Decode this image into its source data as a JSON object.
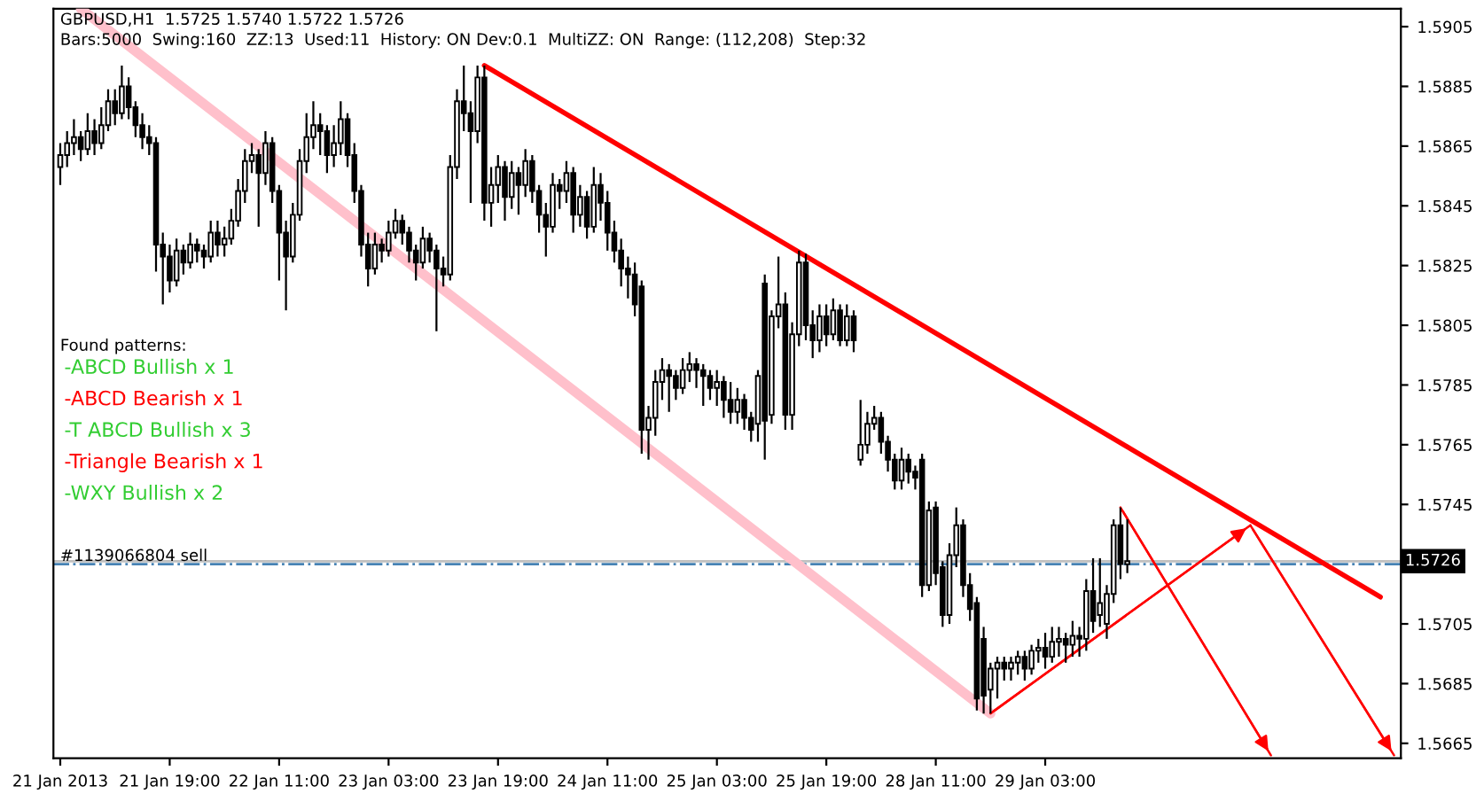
{
  "chart_data": {
    "type": "candlestick",
    "title": "GBPUSD,H1  1.5725 1.5740 1.5722 1.5726",
    "subtitle": "Bars:5000  Swing:160  ZZ:13  Used:11  History: ON Dev:0.1  MultiZZ: ON  Range: (112,208)  Step:32",
    "annotations": [
      "Found patterns:",
      "-ABCD Bullish x 1",
      "-ABCD Bearish x 1",
      "-T ABCD Bullish x 3",
      "-Triangle Bearish x 1",
      "-WXY Bullish x 2"
    ],
    "categories": [
      "21 Jan 2013",
      null,
      null,
      null,
      null,
      null,
      null,
      null,
      null,
      null,
      null,
      null,
      null,
      null,
      null,
      null,
      "21 Jan 19:00",
      null,
      null,
      null,
      null,
      null,
      null,
      null,
      null,
      null,
      null,
      null,
      null,
      null,
      null,
      null,
      "22 Jan 11:00",
      null,
      null,
      null,
      null,
      null,
      null,
      null,
      null,
      null,
      null,
      null,
      null,
      null,
      null,
      null,
      "23 Jan 03:00",
      null,
      null,
      null,
      null,
      null,
      null,
      null,
      null,
      null,
      null,
      null,
      null,
      null,
      null,
      null,
      "23 Jan 19:00",
      null,
      null,
      null,
      null,
      null,
      null,
      null,
      null,
      null,
      null,
      null,
      null,
      null,
      null,
      null,
      "24 Jan 11:00",
      null,
      null,
      null,
      null,
      null,
      null,
      null,
      null,
      null,
      null,
      null,
      null,
      null,
      null,
      null,
      "25 Jan 03:00",
      null,
      null,
      null,
      null,
      null,
      null,
      null,
      null,
      null,
      null,
      null,
      null,
      null,
      null,
      null,
      "25 Jan 19:00",
      null,
      null,
      null,
      null,
      null,
      null,
      null,
      null,
      null,
      null,
      null,
      null,
      null,
      null,
      null,
      "28 Jan 11:00",
      null,
      null,
      null,
      null,
      null,
      null,
      null,
      null,
      null,
      null,
      null,
      null,
      null,
      null,
      null,
      "29 Jan 03:00",
      null,
      null,
      null,
      null,
      null,
      null,
      null,
      null,
      null,
      null,
      null,
      null,
      null,
      null,
      null,
      null,
      null,
      null,
      null,
      null,
      null,
      null,
      null,
      null,
      null,
      null,
      null,
      null,
      null,
      null,
      null,
      null,
      null,
      null,
      null,
      null,
      null,
      null,
      null,
      null,
      null,
      null,
      null,
      null,
      null,
      null,
      null,
      null,
      null,
      null,
      null,
      null
    ],
    "ohlc": [
      [
        1.5858,
        1.5866,
        1.5852,
        1.5862
      ],
      [
        1.5862,
        1.587,
        1.5858,
        1.5866
      ],
      [
        1.5866,
        1.5874,
        1.5862,
        1.5868
      ],
      [
        1.5868,
        1.587,
        1.586,
        1.5864
      ],
      [
        1.5864,
        1.5876,
        1.5862,
        1.587
      ],
      [
        1.587,
        1.5874,
        1.5862,
        1.5866
      ],
      [
        1.5866,
        1.5878,
        1.5864,
        1.5872
      ],
      [
        1.5872,
        1.5884,
        1.587,
        1.588
      ],
      [
        1.588,
        1.5884,
        1.5872,
        1.5876
      ],
      [
        1.5876,
        1.5892,
        1.5874,
        1.5885
      ],
      [
        1.5885,
        1.5888,
        1.5874,
        1.5878
      ],
      [
        1.5878,
        1.588,
        1.5868,
        1.5872
      ],
      [
        1.5872,
        1.5876,
        1.5864,
        1.5868
      ],
      [
        1.5868,
        1.5872,
        1.5862,
        1.5866
      ],
      [
        1.5866,
        1.5868,
        1.5823,
        1.5832
      ],
      [
        1.5832,
        1.5836,
        1.5812,
        1.5828
      ],
      [
        1.5828,
        1.5832,
        1.5816,
        1.582
      ],
      [
        1.582,
        1.5834,
        1.5818,
        1.583
      ],
      [
        1.583,
        1.5832,
        1.5822,
        1.5826
      ],
      [
        1.5826,
        1.5836,
        1.5824,
        1.5832
      ],
      [
        1.5832,
        1.5834,
        1.5826,
        1.583
      ],
      [
        1.583,
        1.5832,
        1.5824,
        1.5828
      ],
      [
        1.5828,
        1.584,
        1.5826,
        1.5836
      ],
      [
        1.5836,
        1.584,
        1.5828,
        1.5832
      ],
      [
        1.5832,
        1.5838,
        1.5828,
        1.5834
      ],
      [
        1.5834,
        1.5844,
        1.5832,
        1.584
      ],
      [
        1.584,
        1.5854,
        1.5838,
        1.585
      ],
      [
        1.585,
        1.5864,
        1.5846,
        1.586
      ],
      [
        1.586,
        1.5866,
        1.5856,
        1.5862
      ],
      [
        1.5862,
        1.5864,
        1.5838,
        1.5856
      ],
      [
        1.5856,
        1.587,
        1.5852,
        1.5866
      ],
      [
        1.5866,
        1.5868,
        1.5846,
        1.585
      ],
      [
        1.585,
        1.5852,
        1.582,
        1.5836
      ],
      [
        1.5836,
        1.584,
        1.581,
        1.5828
      ],
      [
        1.5828,
        1.5846,
        1.5826,
        1.5842
      ],
      [
        1.5842,
        1.5864,
        1.584,
        1.586
      ],
      [
        1.586,
        1.5876,
        1.5856,
        1.5868
      ],
      [
        1.5868,
        1.588,
        1.5864,
        1.5872
      ],
      [
        1.5872,
        1.5876,
        1.5862,
        1.587
      ],
      [
        1.587,
        1.5872,
        1.5856,
        1.5862
      ],
      [
        1.5862,
        1.5872,
        1.5858,
        1.5866
      ],
      [
        1.5866,
        1.588,
        1.5862,
        1.5874
      ],
      [
        1.5874,
        1.5876,
        1.5858,
        1.5862
      ],
      [
        1.5862,
        1.5866,
        1.5846,
        1.585
      ],
      [
        1.585,
        1.5852,
        1.5828,
        1.5832
      ],
      [
        1.5832,
        1.5836,
        1.5818,
        1.5824
      ],
      [
        1.5824,
        1.5836,
        1.5822,
        1.5832
      ],
      [
        1.5832,
        1.5834,
        1.5826,
        1.583
      ],
      [
        1.583,
        1.584,
        1.5828,
        1.5836
      ],
      [
        1.5836,
        1.5844,
        1.5834,
        1.584
      ],
      [
        1.584,
        1.5842,
        1.5832,
        1.5836
      ],
      [
        1.5836,
        1.5838,
        1.5826,
        1.583
      ],
      [
        1.583,
        1.5832,
        1.582,
        1.5826
      ],
      [
        1.5826,
        1.5838,
        1.5824,
        1.5834
      ],
      [
        1.5834,
        1.5836,
        1.5826,
        1.583
      ],
      [
        1.583,
        1.5832,
        1.5803,
        1.5824
      ],
      [
        1.5824,
        1.5828,
        1.5818,
        1.5822
      ],
      [
        1.5822,
        1.5862,
        1.582,
        1.5858
      ],
      [
        1.5858,
        1.5884,
        1.5854,
        1.588
      ],
      [
        1.588,
        1.5892,
        1.587,
        1.5876
      ],
      [
        1.5876,
        1.588,
        1.5846,
        1.587
      ],
      [
        1.587,
        1.5892,
        1.5866,
        1.5888
      ],
      [
        1.5888,
        1.5892,
        1.584,
        1.5846
      ],
      [
        1.5846,
        1.5858,
        1.5838,
        1.5852
      ],
      [
        1.5852,
        1.5862,
        1.5846,
        1.5858
      ],
      [
        1.5858,
        1.586,
        1.584,
        1.5848
      ],
      [
        1.5848,
        1.586,
        1.5844,
        1.5856
      ],
      [
        1.5856,
        1.5858,
        1.5842,
        1.5852
      ],
      [
        1.5852,
        1.5864,
        1.5848,
        1.586
      ],
      [
        1.586,
        1.5862,
        1.5846,
        1.585
      ],
      [
        1.585,
        1.5852,
        1.5836,
        1.5842
      ],
      [
        1.5842,
        1.5846,
        1.5828,
        1.5838
      ],
      [
        1.5838,
        1.5856,
        1.5836,
        1.5852
      ],
      [
        1.5852,
        1.5854,
        1.5844,
        1.585
      ],
      [
        1.585,
        1.586,
        1.5846,
        1.5856
      ],
      [
        1.5856,
        1.5858,
        1.5836,
        1.5842
      ],
      [
        1.5842,
        1.5852,
        1.5838,
        1.5848
      ],
      [
        1.5848,
        1.585,
        1.5834,
        1.5838
      ],
      [
        1.5838,
        1.5858,
        1.5836,
        1.5852
      ],
      [
        1.5852,
        1.5856,
        1.584,
        1.5846
      ],
      [
        1.5846,
        1.585,
        1.583,
        1.5836
      ],
      [
        1.5836,
        1.584,
        1.5826,
        1.583
      ],
      [
        1.583,
        1.5834,
        1.5818,
        1.5824
      ],
      [
        1.5824,
        1.5828,
        1.5814,
        1.5822
      ],
      [
        1.5822,
        1.5826,
        1.5808,
        1.5812
      ],
      [
        1.5818,
        1.582,
        1.5762,
        1.577
      ],
      [
        1.577,
        1.5778,
        1.576,
        1.5774
      ],
      [
        1.5774,
        1.579,
        1.5768,
        1.5786
      ],
      [
        1.5786,
        1.5794,
        1.578,
        1.579
      ],
      [
        1.579,
        1.5792,
        1.5776,
        1.5788
      ],
      [
        1.5788,
        1.579,
        1.578,
        1.5784
      ],
      [
        1.5784,
        1.5794,
        1.5782,
        1.579
      ],
      [
        1.579,
        1.5796,
        1.5786,
        1.5792
      ],
      [
        1.5792,
        1.5794,
        1.5784,
        1.579
      ],
      [
        1.579,
        1.5792,
        1.5778,
        1.5788
      ],
      [
        1.5788,
        1.579,
        1.578,
        1.5784
      ],
      [
        1.5784,
        1.579,
        1.5778,
        1.5786
      ],
      [
        1.5786,
        1.5788,
        1.5774,
        1.578
      ],
      [
        1.578,
        1.5786,
        1.5772,
        1.5776
      ],
      [
        1.5776,
        1.5784,
        1.5772,
        1.578
      ],
      [
        1.578,
        1.5782,
        1.577,
        1.5774
      ],
      [
        1.5774,
        1.5776,
        1.5766,
        1.577
      ],
      [
        1.5772,
        1.579,
        1.5766,
        1.5788
      ],
      [
        1.5819,
        1.5822,
        1.576,
        1.5773
      ],
      [
        1.5775,
        1.581,
        1.5772,
        1.5808
      ],
      [
        1.5808,
        1.5828,
        1.5804,
        1.5812
      ],
      [
        1.5812,
        1.5816,
        1.577,
        1.5775
      ],
      [
        1.5775,
        1.5806,
        1.577,
        1.5802
      ],
      [
        1.5802,
        1.583,
        1.5798,
        1.5826
      ],
      [
        1.5826,
        1.5829,
        1.58,
        1.5805
      ],
      [
        1.5805,
        1.581,
        1.5794,
        1.58
      ],
      [
        1.58,
        1.5812,
        1.5796,
        1.5808
      ],
      [
        1.5808,
        1.5812,
        1.5798,
        1.5802
      ],
      [
        1.5802,
        1.5814,
        1.58,
        1.581
      ],
      [
        1.581,
        1.5812,
        1.5798,
        1.58
      ],
      [
        1.58,
        1.5812,
        1.5798,
        1.5808
      ],
      [
        1.5808,
        1.581,
        1.5796,
        1.58
      ],
      [
        1.576,
        1.578,
        1.5758,
        1.5765
      ],
      [
        1.5765,
        1.5776,
        1.5762,
        1.5772
      ],
      [
        1.5772,
        1.5778,
        1.577,
        1.5774
      ],
      [
        1.5774,
        1.5776,
        1.5762,
        1.5766
      ],
      [
        1.5766,
        1.5768,
        1.5756,
        1.576
      ],
      [
        1.576,
        1.5762,
        1.575,
        1.5753
      ],
      [
        1.5753,
        1.5764,
        1.575,
        1.576
      ],
      [
        1.576,
        1.5762,
        1.5752,
        1.5756
      ],
      [
        1.5756,
        1.5758,
        1.575,
        1.5754
      ],
      [
        1.576,
        1.5762,
        1.5714,
        1.5718
      ],
      [
        1.5718,
        1.5746,
        1.5716,
        1.5743
      ],
      [
        1.5744,
        1.5746,
        1.5718,
        1.5722
      ],
      [
        1.5724,
        1.5726,
        1.5704,
        1.5708
      ],
      [
        1.5708,
        1.5732,
        1.5705,
        1.5728
      ],
      [
        1.5728,
        1.5744,
        1.5724,
        1.5738
      ],
      [
        1.5738,
        1.574,
        1.5714,
        1.5718
      ],
      [
        1.5718,
        1.5722,
        1.5706,
        1.571
      ],
      [
        1.5712,
        1.5714,
        1.5676,
        1.568
      ],
      [
        1.57,
        1.5704,
        1.5675,
        1.5681
      ],
      [
        1.5683,
        1.5692,
        1.5675,
        1.569
      ],
      [
        1.569,
        1.5694,
        1.568,
        1.5692
      ],
      [
        1.5692,
        1.5694,
        1.5686,
        1.569
      ],
      [
        1.569,
        1.5694,
        1.5686,
        1.5692
      ],
      [
        1.5692,
        1.5696,
        1.5688,
        1.5694
      ],
      [
        1.5694,
        1.5696,
        1.5686,
        1.569
      ],
      [
        1.569,
        1.5698,
        1.5688,
        1.5696
      ],
      [
        1.5696,
        1.57,
        1.5692,
        1.5697
      ],
      [
        1.5697,
        1.5702,
        1.569,
        1.5694
      ],
      [
        1.5694,
        1.5704,
        1.5692,
        1.5699
      ],
      [
        1.5699,
        1.5704,
        1.5694,
        1.57
      ],
      [
        1.57,
        1.5702,
        1.5692,
        1.5698
      ],
      [
        1.5698,
        1.5706,
        1.5694,
        1.5701
      ],
      [
        1.5701,
        1.5704,
        1.5694,
        1.57
      ],
      [
        1.57,
        1.572,
        1.5696,
        1.5716
      ],
      [
        1.5716,
        1.5727,
        1.5702,
        1.5706
      ],
      [
        1.5708,
        1.5727,
        1.5704,
        1.5712
      ],
      [
        1.5705,
        1.5718,
        1.57,
        1.5715
      ],
      [
        1.5715,
        1.574,
        1.5712,
        1.5738
      ],
      [
        1.5738,
        1.5744,
        1.572,
        1.5725
      ],
      [
        1.5725,
        1.574,
        1.5722,
        1.5726
      ],
      null,
      null,
      null,
      null,
      null,
      null,
      null,
      null,
      null,
      null,
      null,
      null,
      null,
      null,
      null,
      null,
      null,
      null,
      null,
      null,
      null,
      null,
      null,
      null,
      null,
      null,
      null,
      null,
      null,
      null,
      null,
      null,
      null,
      null,
      null,
      null,
      null,
      null,
      null,
      null
    ],
    "series": [
      {
        "type": "line",
        "color": "#ffc0cb",
        "values": [
          null,
          null,
          null,
          1.5911,
          null,
          null,
          null,
          null,
          null,
          null,
          null,
          null,
          null,
          null,
          null,
          null,
          null,
          null,
          null,
          null,
          null,
          null,
          null,
          null,
          null,
          null,
          null,
          null,
          null,
          null,
          null,
          null,
          null,
          null,
          null,
          null,
          null,
          null,
          null,
          null,
          null,
          null,
          null,
          null,
          null,
          null,
          null,
          null,
          null,
          null,
          null,
          null,
          null,
          null,
          null,
          null,
          null,
          null,
          null,
          null,
          null,
          null,
          null,
          null,
          null,
          null,
          null,
          null,
          null,
          null,
          null,
          null,
          null,
          null,
          null,
          null,
          null,
          null,
          null,
          null,
          null,
          null,
          null,
          null,
          null,
          null,
          null,
          null,
          null,
          null,
          null,
          null,
          null,
          null,
          null,
          null,
          null,
          null,
          null,
          null,
          null,
          null,
          null,
          null,
          null,
          null,
          null,
          null,
          null,
          null,
          null,
          null,
          null,
          null,
          null,
          null,
          null,
          null,
          null,
          null,
          null,
          null,
          null,
          null,
          null,
          null,
          null,
          null,
          null,
          null,
          null,
          null,
          null,
          null,
          null,
          null,
          1.5675,
          null,
          null,
          null,
          null,
          null,
          null,
          null,
          null,
          null,
          null,
          null,
          null,
          null,
          null,
          null,
          null,
          null,
          null,
          null,
          null,
          null,
          null,
          null,
          null,
          null,
          null,
          null,
          null,
          null,
          null,
          null,
          null,
          null,
          null,
          null,
          null,
          null,
          null,
          null,
          null,
          null,
          null,
          null,
          null,
          null,
          null,
          null,
          null,
          null,
          null,
          null,
          null,
          null,
          null,
          null,
          null,
          null,
          null,
          null,
          null
        ]
      },
      {
        "type": "line",
        "color": "#ff0000",
        "values": [
          null,
          null,
          null,
          null,
          null,
          null,
          null,
          null,
          null,
          null,
          null,
          null,
          null,
          null,
          null,
          null,
          null,
          null,
          null,
          null,
          null,
          null,
          null,
          null,
          null,
          null,
          null,
          null,
          null,
          null,
          null,
          null,
          null,
          null,
          null,
          null,
          null,
          null,
          null,
          null,
          null,
          null,
          null,
          null,
          null,
          null,
          null,
          null,
          null,
          null,
          null,
          null,
          null,
          null,
          null,
          null,
          null,
          null,
          null,
          null,
          null,
          null,
          1.5892,
          null,
          null,
          null,
          null,
          null,
          null,
          null,
          null,
          null,
          null,
          null,
          null,
          null,
          null,
          null,
          null,
          null,
          null,
          null,
          null,
          null,
          null,
          null,
          null,
          null,
          null,
          null,
          null,
          null,
          null,
          null,
          null,
          null,
          null,
          null,
          null,
          null,
          null,
          null,
          null,
          null,
          null,
          null,
          null,
          null,
          null,
          null,
          null,
          null,
          null,
          null,
          null,
          null,
          null,
          null,
          null,
          null,
          null,
          null,
          null,
          null,
          null,
          null,
          null,
          null,
          null,
          null,
          null,
          null,
          null,
          null,
          null,
          null,
          null,
          null,
          null,
          null,
          null,
          null,
          null,
          null,
          null,
          null,
          null,
          null,
          null,
          null,
          null,
          null,
          null,
          null,
          null,
          null,
          null,
          null,
          null,
          null,
          null,
          null,
          null,
          null,
          null,
          null,
          null,
          null,
          null,
          null,
          null,
          null,
          null,
          null,
          null,
          null,
          null,
          null,
          null,
          null,
          null,
          null,
          null,
          null,
          null,
          null,
          null,
          null,
          null,
          null,
          null,
          null,
          null,
          1.5714,
          null,
          null,
          null
        ]
      },
      {
        "type": "line",
        "color": "#ff0000",
        "values": [
          null,
          null,
          null,
          null,
          null,
          null,
          null,
          null,
          null,
          null,
          null,
          null,
          null,
          null,
          null,
          null,
          null,
          null,
          null,
          null,
          null,
          null,
          null,
          null,
          null,
          null,
          null,
          null,
          null,
          null,
          null,
          null,
          null,
          null,
          null,
          null,
          null,
          null,
          null,
          null,
          null,
          null,
          null,
          null,
          null,
          null,
          null,
          null,
          null,
          null,
          null,
          null,
          null,
          null,
          null,
          null,
          null,
          null,
          null,
          null,
          null,
          null,
          null,
          null,
          null,
          null,
          null,
          null,
          null,
          null,
          null,
          null,
          null,
          null,
          null,
          null,
          null,
          null,
          null,
          null,
          null,
          null,
          null,
          null,
          null,
          null,
          null,
          null,
          null,
          null,
          null,
          null,
          null,
          null,
          null,
          null,
          null,
          null,
          null,
          null,
          null,
          null,
          null,
          null,
          null,
          null,
          null,
          null,
          null,
          null,
          null,
          null,
          null,
          null,
          null,
          null,
          null,
          null,
          null,
          null,
          null,
          null,
          null,
          null,
          null,
          null,
          null,
          null,
          null,
          null,
          null,
          null,
          null,
          null,
          null,
          null,
          1.5675,
          null,
          null,
          null,
          null,
          null,
          null,
          null,
          null,
          null,
          null,
          null,
          null,
          null,
          null,
          null,
          null,
          null,
          null,
          null,
          null,
          null,
          null,
          null,
          null,
          null,
          null,
          null,
          null,
          null,
          null,
          null,
          null,
          null,
          null,
          null,
          null,
          null,
          1.5738,
          null,
          null,
          null,
          null,
          null,
          null,
          null,
          null,
          null,
          null,
          null,
          null,
          null,
          null,
          null,
          null,
          null,
          null,
          null,
          null,
          null,
          null
        ]
      },
      {
        "type": "line",
        "color": "#ff0000",
        "values": [
          null,
          null,
          null,
          null,
          null,
          null,
          null,
          null,
          null,
          null,
          null,
          null,
          null,
          null,
          null,
          null,
          null,
          null,
          null,
          null,
          null,
          null,
          null,
          null,
          null,
          null,
          null,
          null,
          null,
          null,
          null,
          null,
          null,
          null,
          null,
          null,
          null,
          null,
          null,
          null,
          null,
          null,
          null,
          null,
          null,
          null,
          null,
          null,
          null,
          null,
          null,
          null,
          null,
          null,
          null,
          null,
          null,
          null,
          null,
          null,
          null,
          null,
          null,
          null,
          null,
          null,
          null,
          null,
          null,
          null,
          null,
          null,
          null,
          null,
          null,
          null,
          null,
          null,
          null,
          null,
          null,
          null,
          null,
          null,
          null,
          null,
          null,
          null,
          null,
          null,
          null,
          null,
          null,
          null,
          null,
          null,
          null,
          null,
          null,
          null,
          null,
          null,
          null,
          null,
          null,
          null,
          null,
          null,
          null,
          null,
          null,
          null,
          null,
          null,
          null,
          null,
          null,
          null,
          null,
          null,
          null,
          null,
          null,
          null,
          null,
          null,
          null,
          null,
          null,
          null,
          null,
          null,
          null,
          null,
          null,
          null,
          null,
          null,
          null,
          null,
          null,
          null,
          null,
          null,
          null,
          null,
          null,
          null,
          null,
          null,
          null,
          null,
          null,
          null,
          null,
          1.5744,
          null,
          null,
          null,
          null,
          null,
          null,
          null,
          null,
          null,
          null,
          null,
          null,
          null,
          null,
          null,
          null,
          null,
          null,
          null,
          null,
          null,
          1.5661,
          null,
          null,
          null,
          null,
          null,
          null,
          null,
          null,
          null,
          null,
          null,
          null,
          null,
          null,
          null,
          null,
          null,
          null,
          null
        ]
      },
      {
        "type": "line",
        "color": "#ff0000",
        "values": [
          null,
          null,
          null,
          null,
          null,
          null,
          null,
          null,
          null,
          null,
          null,
          null,
          null,
          null,
          null,
          null,
          null,
          null,
          null,
          null,
          null,
          null,
          null,
          null,
          null,
          null,
          null,
          null,
          null,
          null,
          null,
          null,
          null,
          null,
          null,
          null,
          null,
          null,
          null,
          null,
          null,
          null,
          null,
          null,
          null,
          null,
          null,
          null,
          null,
          null,
          null,
          null,
          null,
          null,
          null,
          null,
          null,
          null,
          null,
          null,
          null,
          null,
          null,
          null,
          null,
          null,
          null,
          null,
          null,
          null,
          null,
          null,
          null,
          null,
          null,
          null,
          null,
          null,
          null,
          null,
          null,
          null,
          null,
          null,
          null,
          null,
          null,
          null,
          null,
          null,
          null,
          null,
          null,
          null,
          null,
          null,
          null,
          null,
          null,
          null,
          null,
          null,
          null,
          null,
          null,
          null,
          null,
          null,
          null,
          null,
          null,
          null,
          null,
          null,
          null,
          null,
          null,
          null,
          null,
          null,
          null,
          null,
          null,
          null,
          null,
          null,
          null,
          null,
          null,
          null,
          null,
          null,
          null,
          null,
          null,
          null,
          null,
          null,
          null,
          null,
          null,
          null,
          null,
          null,
          null,
          null,
          null,
          null,
          null,
          null,
          null,
          null,
          null,
          null,
          null,
          null,
          null,
          null,
          null,
          null,
          null,
          null,
          null,
          null,
          null,
          null,
          null,
          null,
          null,
          null,
          null,
          null,
          null,
          null,
          1.5738,
          null,
          null,
          null,
          null,
          null,
          null,
          null,
          null,
          null,
          null,
          null,
          null,
          null,
          null,
          null,
          null,
          null,
          null,
          null,
          null,
          1.5661,
          null
        ]
      }
    ],
    "ref_lines": [
      {
        "axis": "y",
        "value": 1.5726,
        "label": "1.5726",
        "color": "#c0c0c0",
        "line_style": "solid"
      },
      {
        "axis": "y",
        "value": 1.5725,
        "label": "#1139066804 sell",
        "color": "#4682b4",
        "line_style": "dashdot"
      }
    ],
    "ylim": [
      1.566,
      1.5911
    ],
    "yticks": [
      1.5905,
      1.5885,
      1.5865,
      1.5845,
      1.5825,
      1.5805,
      1.5785,
      1.5765,
      1.5745,
      1.5705,
      1.5685,
      1.5665
    ],
    "grid": false,
    "legend": false
  }
}
